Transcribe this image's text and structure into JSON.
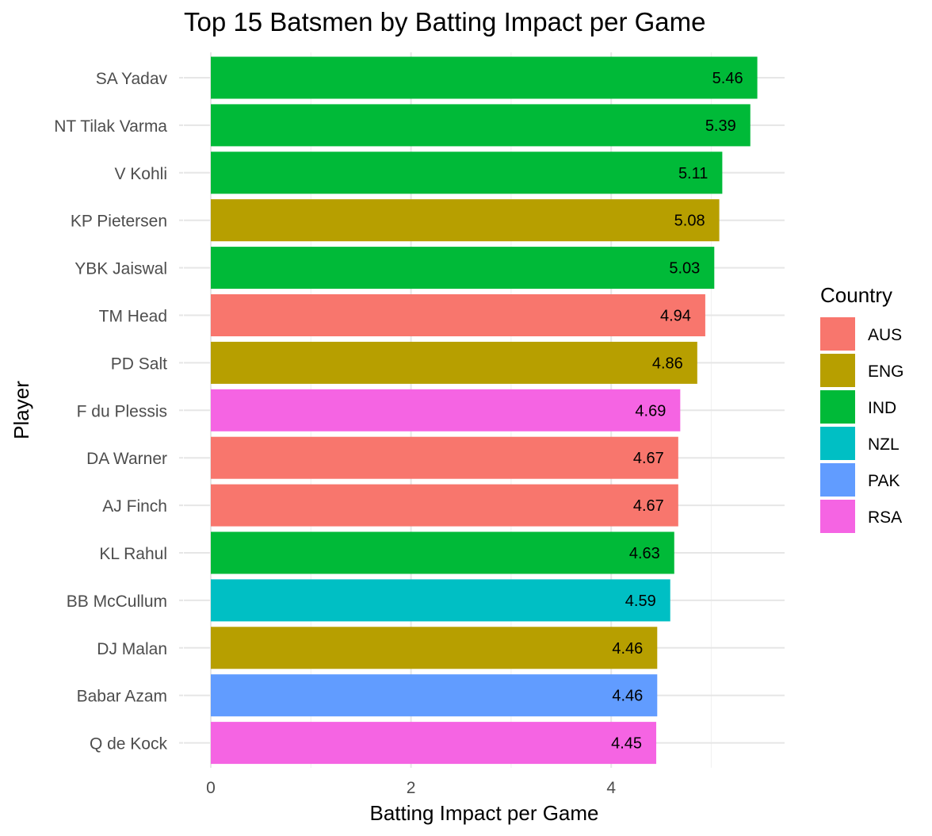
{
  "chart_data": {
    "type": "bar",
    "orientation": "horizontal",
    "title": "Top 15 Batsmen by Batting Impact per Game",
    "xlabel": "Batting Impact per Game",
    "ylabel": "Player",
    "xlim": [
      0,
      5.73
    ],
    "x_ticks": [
      "0",
      "2",
      "4"
    ],
    "grid": true,
    "legend_position": "right",
    "legend_title": "Country",
    "legend": [
      {
        "name": "AUS",
        "color": "#F8766D"
      },
      {
        "name": "ENG",
        "color": "#B79F00"
      },
      {
        "name": "IND",
        "color": "#00BA38"
      },
      {
        "name": "NZL",
        "color": "#00BFC4"
      },
      {
        "name": "PAK",
        "color": "#619CFF"
      },
      {
        "name": "RSA",
        "color": "#F564E3"
      }
    ],
    "bars": [
      {
        "player": "SA Yadav",
        "value": 5.46,
        "label": "5.46",
        "country": "IND"
      },
      {
        "player": "NT Tilak Varma",
        "value": 5.39,
        "label": "5.39",
        "country": "IND"
      },
      {
        "player": "V Kohli",
        "value": 5.11,
        "label": "5.11",
        "country": "IND"
      },
      {
        "player": "KP Pietersen",
        "value": 5.08,
        "label": "5.08",
        "country": "ENG"
      },
      {
        "player": "YBK Jaiswal",
        "value": 5.03,
        "label": "5.03",
        "country": "IND"
      },
      {
        "player": "TM Head",
        "value": 4.94,
        "label": "4.94",
        "country": "AUS"
      },
      {
        "player": "PD Salt",
        "value": 4.86,
        "label": "4.86",
        "country": "ENG"
      },
      {
        "player": "F du Plessis",
        "value": 4.69,
        "label": "4.69",
        "country": "RSA"
      },
      {
        "player": "DA Warner",
        "value": 4.67,
        "label": "4.67",
        "country": "AUS"
      },
      {
        "player": "AJ Finch",
        "value": 4.67,
        "label": "4.67",
        "country": "AUS"
      },
      {
        "player": "KL Rahul",
        "value": 4.63,
        "label": "4.63",
        "country": "IND"
      },
      {
        "player": "BB McCullum",
        "value": 4.59,
        "label": "4.59",
        "country": "NZL"
      },
      {
        "player": "DJ Malan",
        "value": 4.46,
        "label": "4.46",
        "country": "ENG"
      },
      {
        "player": "Babar Azam",
        "value": 4.46,
        "label": "4.46",
        "country": "PAK"
      },
      {
        "player": "Q de Kock",
        "value": 4.45,
        "label": "4.45",
        "country": "RSA"
      }
    ]
  }
}
